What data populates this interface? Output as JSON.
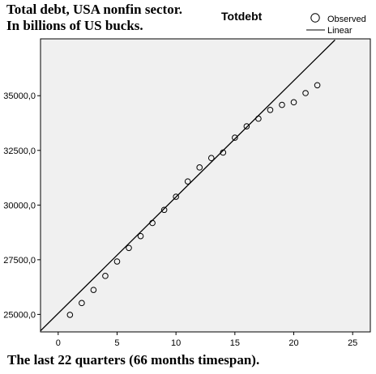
{
  "header": {
    "title_line1": "Total debt, USA nonfin sector.",
    "title_line2": "In billions of US bucks.",
    "variable_label": "Totdebt"
  },
  "legend": {
    "observed_label": "Observed",
    "linear_label": "Linear"
  },
  "footer": {
    "caption": "The last 22 quarters (66 months timespan)."
  },
  "colors": {
    "plot_background": "#f0f0f0",
    "marker_stroke": "#000000",
    "fit_line": "#000000",
    "axis": "#000000"
  },
  "chart_data": {
    "type": "scatter",
    "legend_position": "top-right",
    "grid": false,
    "xlim": [
      -1.5,
      26.5
    ],
    "ylim": [
      24200,
      37600
    ],
    "x_ticks": [
      0,
      5,
      10,
      15,
      20,
      25
    ],
    "x_tick_labels": [
      "0",
      "5",
      "10",
      "15",
      "20",
      "25"
    ],
    "y_ticks": [
      25000,
      27500,
      30000,
      32500,
      35000
    ],
    "y_tick_labels": [
      "25000,0",
      "27500,0",
      "30000,0",
      "32500,0",
      "35000,0"
    ],
    "series": [
      {
        "name": "Observed",
        "marker": "circle-open",
        "x": [
          1,
          2,
          3,
          4,
          5,
          6,
          7,
          8,
          9,
          10,
          11,
          12,
          13,
          14,
          15,
          16,
          17,
          18,
          19,
          20,
          21,
          22
        ],
        "y": [
          24980,
          25520,
          26120,
          26760,
          27420,
          28040,
          28580,
          29180,
          29780,
          30380,
          31080,
          31720,
          32150,
          32400,
          33080,
          33600,
          33950,
          34350,
          34580,
          34700,
          35120,
          35480
        ]
      },
      {
        "name": "Linear",
        "type": "line",
        "x": [
          -1.5,
          23.5
        ],
        "y": [
          24250,
          37550
        ]
      }
    ]
  }
}
